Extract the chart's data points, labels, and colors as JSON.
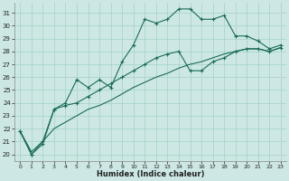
{
  "xlabel": "Humidex (Indice chaleur)",
  "bg_color": "#cde8e4",
  "grid_color": "#aad4cc",
  "line_color": "#1a6b5a",
  "xlim": [
    -0.5,
    23.5
  ],
  "ylim": [
    19.5,
    31.8
  ],
  "yticks": [
    20,
    21,
    22,
    23,
    24,
    25,
    26,
    27,
    28,
    29,
    30,
    31
  ],
  "xticks": [
    0,
    1,
    2,
    3,
    4,
    5,
    6,
    7,
    8,
    9,
    10,
    11,
    12,
    13,
    14,
    15,
    16,
    17,
    18,
    19,
    20,
    21,
    22,
    23
  ],
  "line1_x": [
    0,
    1,
    2,
    3,
    4,
    5,
    6,
    7,
    8,
    9,
    10,
    11,
    12,
    13,
    14,
    15,
    16,
    17,
    18,
    19,
    20,
    21,
    22,
    23
  ],
  "line1_y": [
    21.8,
    20.0,
    20.8,
    23.5,
    24.0,
    25.8,
    25.2,
    25.8,
    25.2,
    27.2,
    28.5,
    30.5,
    30.2,
    30.5,
    31.3,
    31.3,
    30.5,
    30.5,
    30.8,
    29.2,
    29.2,
    28.8,
    28.2,
    28.5
  ],
  "line2_x": [
    0,
    1,
    2,
    3,
    4,
    5,
    6,
    7,
    8,
    9,
    10,
    11,
    12,
    13,
    14,
    15,
    16,
    17,
    18,
    19,
    20,
    21,
    22,
    23
  ],
  "line2_y": [
    21.8,
    20.0,
    21.0,
    23.5,
    23.8,
    24.0,
    24.5,
    25.0,
    25.5,
    26.0,
    26.5,
    27.0,
    27.5,
    27.8,
    28.0,
    26.5,
    26.5,
    27.2,
    27.5,
    28.0,
    28.2,
    28.2,
    28.0,
    28.3
  ],
  "line3_x": [
    0,
    1,
    2,
    3,
    4,
    5,
    6,
    7,
    8,
    9,
    10,
    11,
    12,
    13,
    14,
    15,
    16,
    17,
    18,
    19,
    20,
    21,
    22,
    23
  ],
  "line3_y": [
    21.8,
    20.2,
    21.0,
    22.0,
    22.5,
    23.0,
    23.5,
    23.8,
    24.2,
    24.7,
    25.2,
    25.6,
    26.0,
    26.3,
    26.7,
    27.0,
    27.2,
    27.5,
    27.8,
    28.0,
    28.2,
    28.2,
    28.0,
    28.3
  ]
}
